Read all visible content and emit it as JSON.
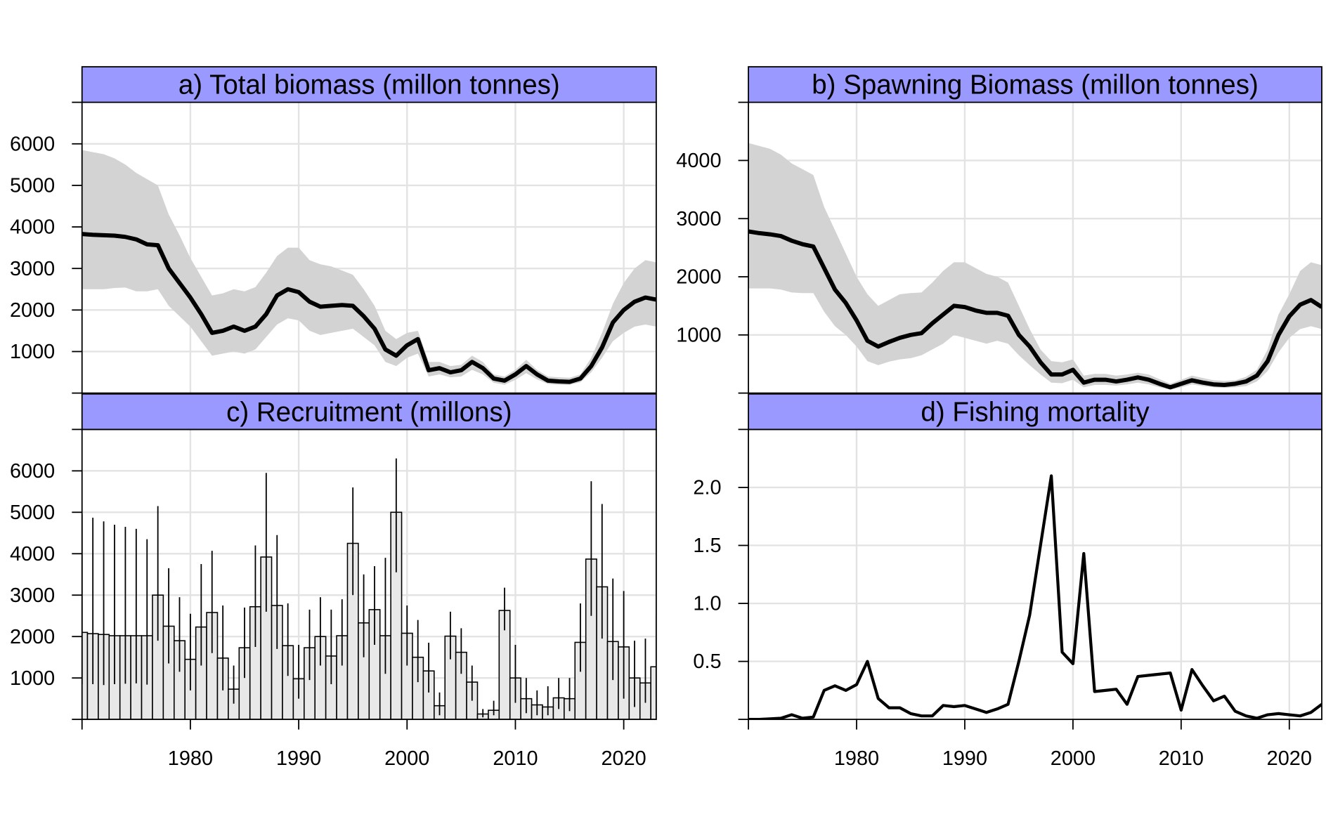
{
  "chart_data": [
    {
      "type": "line",
      "title": "a) Total biomass (millon tonnes)",
      "x": [
        1970,
        1971,
        1972,
        1973,
        1974,
        1975,
        1976,
        1977,
        1978,
        1979,
        1980,
        1981,
        1982,
        1983,
        1984,
        1985,
        1986,
        1987,
        1988,
        1989,
        1990,
        1991,
        1992,
        1993,
        1994,
        1995,
        1996,
        1997,
        1998,
        1999,
        2000,
        2001,
        2002,
        2003,
        2004,
        2005,
        2006,
        2007,
        2008,
        2009,
        2010,
        2011,
        2012,
        2013,
        2014,
        2015,
        2016,
        2017,
        2018,
        2019,
        2020,
        2021,
        2022,
        2023
      ],
      "values": [
        3830,
        3810,
        3800,
        3790,
        3760,
        3700,
        3580,
        3560,
        3000,
        2650,
        2300,
        1900,
        1450,
        1500,
        1600,
        1500,
        1600,
        1900,
        2350,
        2500,
        2430,
        2200,
        2080,
        2100,
        2120,
        2100,
        1850,
        1550,
        1050,
        900,
        1150,
        1300,
        550,
        600,
        500,
        550,
        750,
        600,
        350,
        300,
        450,
        650,
        450,
        300,
        280,
        270,
        350,
        650,
        1100,
        1700,
        2000,
        2200,
        2300,
        2250
      ],
      "lower": [
        2500,
        2500,
        2500,
        2530,
        2540,
        2450,
        2450,
        2500,
        2100,
        1850,
        1600,
        1250,
        900,
        950,
        1000,
        950,
        1050,
        1350,
        1650,
        1800,
        1750,
        1500,
        1400,
        1450,
        1500,
        1550,
        1350,
        1150,
        750,
        650,
        850,
        950,
        400,
        450,
        380,
        400,
        560,
        450,
        250,
        200,
        320,
        480,
        330,
        220,
        200,
        200,
        260,
        500,
        850,
        1250,
        1450,
        1600,
        1650,
        1600
      ],
      "upper": [
        5850,
        5800,
        5750,
        5650,
        5500,
        5300,
        5150,
        5000,
        4300,
        3800,
        3250,
        2800,
        2350,
        2400,
        2500,
        2450,
        2550,
        2900,
        3300,
        3500,
        3500,
        3200,
        3100,
        3050,
        2950,
        2850,
        2500,
        2100,
        1500,
        1300,
        1450,
        1500,
        750,
        750,
        650,
        680,
        900,
        750,
        450,
        400,
        560,
        800,
        560,
        400,
        380,
        370,
        450,
        850,
        1450,
        2150,
        2650,
        3000,
        3200,
        3150
      ],
      "color": "#000000",
      "band_color": "#d3d3d3",
      "strip_color": "#9999ff",
      "xlim": [
        1970,
        2023
      ],
      "xticks": [
        1980,
        1990,
        2000,
        2010,
        2020
      ],
      "ylim": [
        0,
        7000
      ],
      "yticks": [
        1000,
        2000,
        3000,
        4000,
        5000,
        6000
      ],
      "grid": true
    },
    {
      "type": "line",
      "title": "b) Spawning Biomass (millon tonnes)",
      "x": [
        1970,
        1971,
        1972,
        1973,
        1974,
        1975,
        1976,
        1977,
        1978,
        1979,
        1980,
        1981,
        1982,
        1983,
        1984,
        1985,
        1986,
        1987,
        1988,
        1989,
        1990,
        1991,
        1992,
        1993,
        1994,
        1995,
        1996,
        1997,
        1998,
        1999,
        2000,
        2001,
        2002,
        2003,
        2004,
        2005,
        2006,
        2007,
        2008,
        2009,
        2010,
        2011,
        2012,
        2013,
        2014,
        2015,
        2016,
        2017,
        2018,
        2019,
        2020,
        2021,
        2022,
        2023
      ],
      "values": [
        2780,
        2750,
        2730,
        2700,
        2620,
        2560,
        2520,
        2150,
        1780,
        1550,
        1250,
        900,
        800,
        880,
        950,
        1000,
        1030,
        1200,
        1350,
        1500,
        1480,
        1420,
        1380,
        1380,
        1330,
        1000,
        800,
        530,
        320,
        320,
        400,
        180,
        230,
        230,
        200,
        230,
        270,
        230,
        160,
        100,
        160,
        220,
        180,
        150,
        140,
        160,
        200,
        300,
        550,
        1000,
        1320,
        1520,
        1600,
        1480
      ],
      "lower": [
        1800,
        1800,
        1800,
        1780,
        1730,
        1720,
        1720,
        1400,
        1150,
        1000,
        800,
        550,
        480,
        540,
        580,
        600,
        650,
        750,
        850,
        1000,
        950,
        900,
        850,
        900,
        850,
        650,
        480,
        320,
        180,
        170,
        230,
        100,
        140,
        140,
        130,
        150,
        180,
        150,
        100,
        60,
        100,
        150,
        120,
        100,
        90,
        100,
        120,
        200,
        380,
        700,
        950,
        1100,
        1150,
        1100
      ],
      "upper": [
        4300,
        4250,
        4200,
        4100,
        3950,
        3850,
        3750,
        3200,
        2800,
        2400,
        2000,
        1700,
        1500,
        1600,
        1700,
        1720,
        1730,
        1900,
        2100,
        2250,
        2250,
        2150,
        2050,
        2000,
        1900,
        1500,
        1100,
        750,
        550,
        530,
        580,
        300,
        330,
        330,
        300,
        320,
        350,
        320,
        240,
        160,
        230,
        300,
        260,
        220,
        210,
        220,
        280,
        400,
        750,
        1350,
        1700,
        2100,
        2250,
        2200
      ],
      "color": "#000000",
      "band_color": "#d3d3d3",
      "strip_color": "#9999ff",
      "xlim": [
        1970,
        2023
      ],
      "xticks": [
        1980,
        1990,
        2000,
        2010,
        2020
      ],
      "ylim": [
        0,
        5000
      ],
      "yticks": [
        1000,
        2000,
        3000,
        4000
      ],
      "grid": true
    },
    {
      "type": "bar",
      "title": "c) Recruitment (millons)",
      "x": [
        1970,
        1971,
        1972,
        1973,
        1974,
        1975,
        1976,
        1977,
        1978,
        1979,
        1980,
        1981,
        1982,
        1983,
        1984,
        1985,
        1986,
        1987,
        1988,
        1989,
        1990,
        1991,
        1992,
        1993,
        1994,
        1995,
        1996,
        1997,
        1998,
        1999,
        2000,
        2001,
        2002,
        2003,
        2004,
        2005,
        2006,
        2007,
        2008,
        2009,
        2010,
        2011,
        2012,
        2013,
        2014,
        2015,
        2016,
        2017,
        2018,
        2019,
        2020,
        2021,
        2022,
        2023
      ],
      "values": [
        2100,
        2070,
        2050,
        2020,
        2020,
        2020,
        2020,
        3000,
        2250,
        1900,
        1450,
        2230,
        2580,
        1480,
        730,
        1730,
        2720,
        3920,
        2750,
        1780,
        980,
        1730,
        2000,
        1530,
        2020,
        4250,
        2330,
        2650,
        2020,
        5000,
        2080,
        1500,
        1170,
        330,
        2010,
        1620,
        900,
        130,
        220,
        2630,
        1000,
        500,
        350,
        300,
        520,
        500,
        1860,
        3870,
        3200,
        1880,
        1750,
        1000,
        880,
        1270
      ],
      "lower": [
        850,
        850,
        830,
        850,
        860,
        870,
        840,
        1900,
        1350,
        1150,
        700,
        1300,
        1600,
        700,
        380,
        1000,
        1750,
        2600,
        1700,
        1050,
        500,
        950,
        1300,
        850,
        1300,
        3000,
        1500,
        1800,
        1100,
        3550,
        1300,
        900,
        650,
        100,
        1450,
        1100,
        450,
        50,
        100,
        2150,
        400,
        150,
        100,
        100,
        250,
        200,
        1150,
        2500,
        1950,
        950,
        500,
        300,
        400,
        600
      ],
      "upper": [
        4950,
        4870,
        4780,
        4700,
        4650,
        4600,
        4350,
        5150,
        3650,
        2950,
        2550,
        3750,
        4070,
        2750,
        1300,
        2700,
        4200,
        5950,
        4450,
        2800,
        1800,
        2650,
        2950,
        2650,
        2900,
        5600,
        3500,
        3700,
        3900,
        6300,
        2750,
        2400,
        1850,
        650,
        2600,
        2200,
        1300,
        250,
        450,
        3180,
        1800,
        1000,
        700,
        800,
        1000,
        1000,
        2800,
        5750,
        5200,
        3400,
        3100,
        1900,
        1950,
        2500
      ],
      "color": "#e8e8e8",
      "strip_color": "#9999ff",
      "xlim": [
        1970,
        2023
      ],
      "xticks": [
        1980,
        1990,
        2000,
        2010,
        2020
      ],
      "ylim": [
        0,
        7000
      ],
      "yticks": [
        1000,
        2000,
        3000,
        4000,
        5000,
        6000
      ],
      "grid": true
    },
    {
      "type": "line",
      "title": "d) Fishing mortality",
      "x": [
        1970,
        1971,
        1972,
        1973,
        1974,
        1975,
        1976,
        1977,
        1978,
        1979,
        1980,
        1981,
        1982,
        1983,
        1984,
        1985,
        1986,
        1987,
        1988,
        1989,
        1990,
        1991,
        1992,
        1993,
        1994,
        1995,
        1996,
        1997,
        1998,
        1999,
        2000,
        2001,
        2002,
        2003,
        2004,
        2005,
        2006,
        2007,
        2008,
        2009,
        2010,
        2011,
        2012,
        2013,
        2014,
        2015,
        2016,
        2017,
        2018,
        2019,
        2020,
        2021,
        2022,
        2023
      ],
      "values": [
        0,
        0,
        0.005,
        0.01,
        0.04,
        0.01,
        0.02,
        0.25,
        0.29,
        0.25,
        0.3,
        0.5,
        0.18,
        0.1,
        0.1,
        0.05,
        0.03,
        0.03,
        0.12,
        0.11,
        0.12,
        0.09,
        0.06,
        0.09,
        0.13,
        0.5,
        0.9,
        1.5,
        2.1,
        0.58,
        0.48,
        1.43,
        0.24,
        0.25,
        0.26,
        0.13,
        0.37,
        0.38,
        0.39,
        0.4,
        0.08,
        0.43,
        0.29,
        0.16,
        0.2,
        0.07,
        0.03,
        0.01,
        0.04,
        0.05,
        0.04,
        0.03,
        0.06,
        0.13
      ],
      "color": "#000000",
      "strip_color": "#9999ff",
      "xlim": [
        1970,
        2023
      ],
      "xticks": [
        1980,
        1990,
        2000,
        2010,
        2020
      ],
      "ylim": [
        0,
        2.5
      ],
      "yticks": [
        {
          "value": 0.5,
          "label": "0.5"
        },
        {
          "value": 1,
          "label": "1.0"
        },
        {
          "value": 1.5,
          "label": "1.5"
        },
        {
          "value": 2,
          "label": "2.0"
        }
      ],
      "grid": true
    }
  ]
}
